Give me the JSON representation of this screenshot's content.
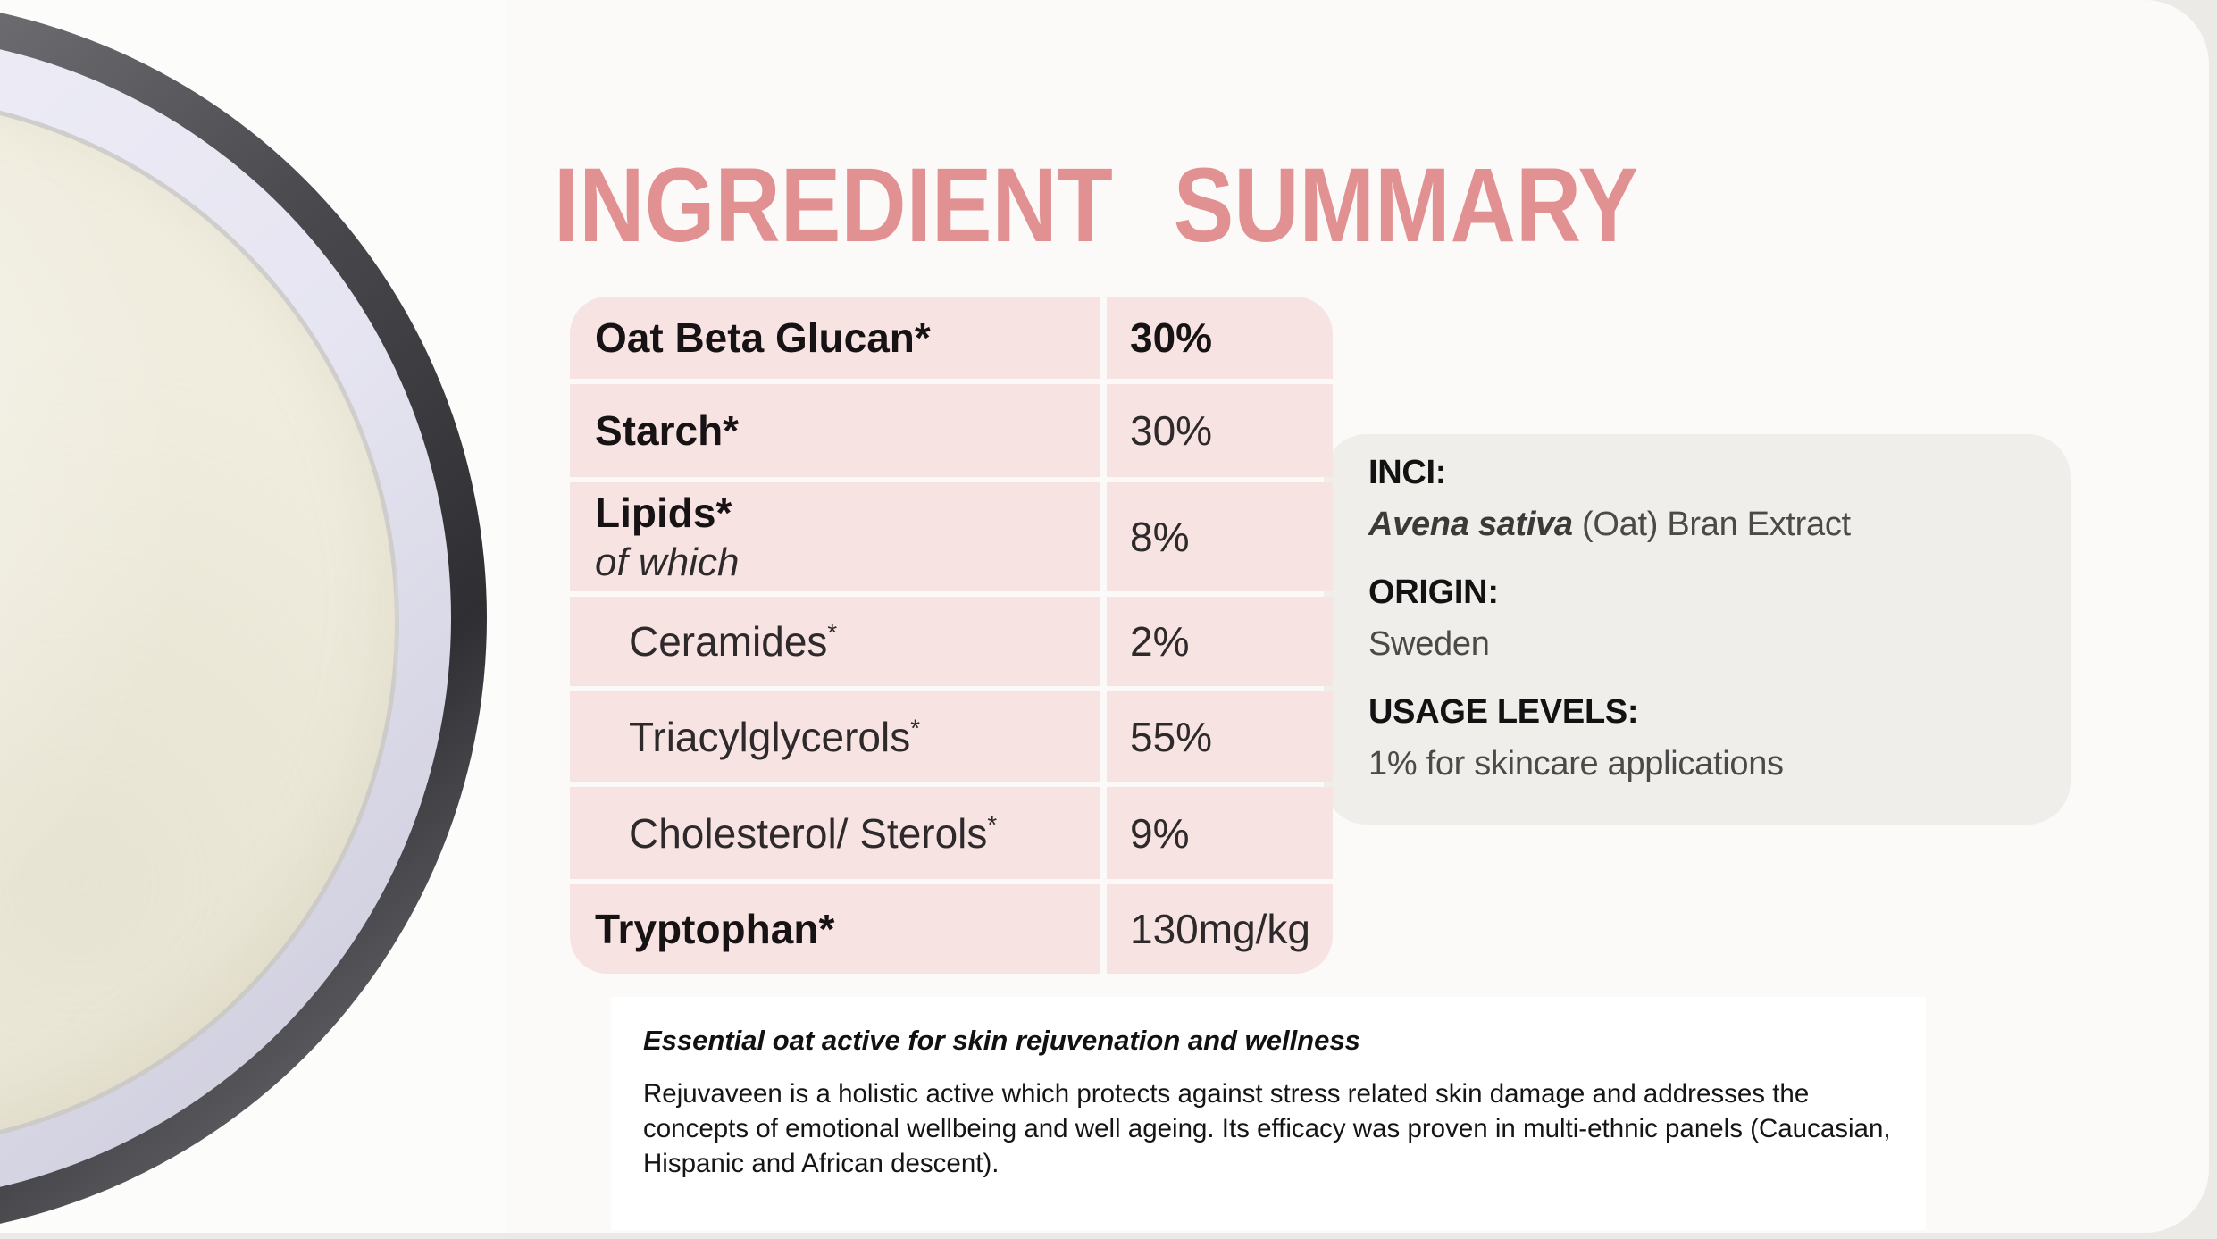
{
  "title": "INGREDIENT SUMMARY",
  "colors": {
    "title_accent": "#e29192",
    "table_pink": "#f8e3e3",
    "info_box_gray": "#efeeeb",
    "card_white": "#ffffff",
    "slide_bg": "#fbfaf8"
  },
  "photo": {
    "alt": "petri-dish-with-cream-oat-powder"
  },
  "table": {
    "rows": [
      {
        "label": "Oat Beta Glucan*",
        "sup": "",
        "note": "",
        "value": "30%"
      },
      {
        "label": "Starch*",
        "sup": "",
        "note": "",
        "value": "30%"
      },
      {
        "label": "Lipids*",
        "sup": "",
        "note": "of which",
        "value": "8%"
      },
      {
        "label": "Ceramides",
        "sup": "*",
        "note": "",
        "value": "2%"
      },
      {
        "label": "Triacylglycerols",
        "sup": "*",
        "note": "",
        "value": "55%"
      },
      {
        "label": "Cholesterol/ Sterols",
        "sup": "*",
        "note": "",
        "value": "9%"
      },
      {
        "label": "Tryptophan*",
        "sup": "",
        "note": "",
        "value": "130mg/kg"
      }
    ]
  },
  "info_box": {
    "inci_label": "INCI:",
    "inci_species": "Avena sativa",
    "inci_rest": " (Oat) Bran Extract",
    "origin_label": "ORIGIN:",
    "origin_value": "Sweden",
    "usage_label": "USAGE LEVELS:",
    "usage_value": "1% for skincare applications"
  },
  "description": {
    "heading": "Essential oat active for skin rejuvenation and wellness",
    "body": "Rejuvaveen is a holistic active which protects against stress related skin damage and addresses the concepts of emotional wellbeing and well ageing. Its efficacy was proven in multi-ethnic panels (Caucasian, Hispanic and African descent)."
  }
}
